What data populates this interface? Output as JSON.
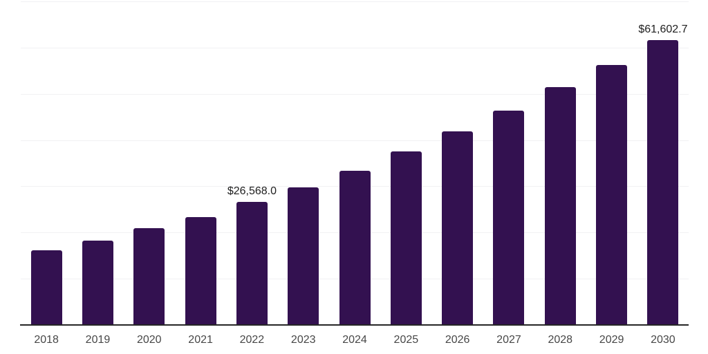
{
  "chart_data": {
    "type": "bar",
    "title": "",
    "xlabel": "",
    "ylabel": "",
    "categories": [
      "2018",
      "2019",
      "2020",
      "2021",
      "2022",
      "2023",
      "2024",
      "2025",
      "2026",
      "2027",
      "2028",
      "2029",
      "2030"
    ],
    "values": [
      16100,
      18200,
      21000,
      23300,
      26568.0,
      29700,
      33400,
      37600,
      41900,
      46400,
      51400,
      56200,
      61602.7
    ],
    "data_labels": [
      null,
      null,
      null,
      null,
      "$26,568.0",
      null,
      null,
      null,
      null,
      null,
      null,
      null,
      "$61,602.7"
    ],
    "ylim": [
      0,
      70000
    ],
    "gridline_interval": 10000,
    "grid_visible": true,
    "legend": "none",
    "colors": {
      "bar": "#331150",
      "gridline": "#f1f1f3",
      "axis_line": "#262626",
      "value_label": "#1d1d1d",
      "tick_label": "#474747",
      "background": "#ffffff"
    }
  }
}
